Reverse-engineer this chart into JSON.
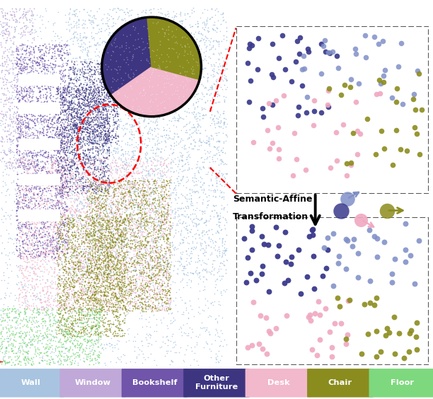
{
  "colors": {
    "wall": "#a8c4e0",
    "window": "#c0a8d8",
    "bookshelf": "#7055aa",
    "other_furniture": "#3d3580",
    "desk": "#f2b8cc",
    "chair": "#8a8c1e",
    "floor": "#7ed87e"
  },
  "legend_labels": [
    "Wall",
    "Window",
    "Bookshelf",
    "Other\nFurniture",
    "Desk",
    "Chair",
    "Floor"
  ],
  "legend_colors": [
    "#a8c4e0",
    "#c0a8d8",
    "#7055aa",
    "#3d3580",
    "#f2b8cc",
    "#8a8c1e",
    "#7ed87e"
  ],
  "dot_dark_blue": "#3a3a8c",
  "dot_light_blue": "#8090c8",
  "dot_pink": "#f0a8c0",
  "dot_olive": "#8c8c1e",
  "bg_white": "#ffffff",
  "border_color": "#555555",
  "arrow_color": "#111111"
}
